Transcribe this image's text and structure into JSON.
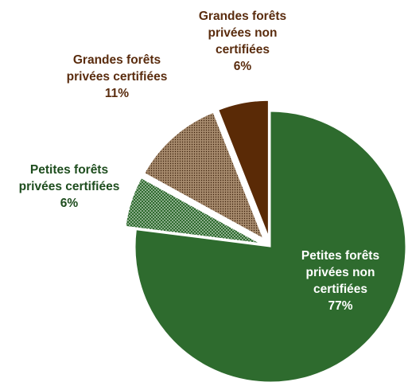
{
  "chart_data": {
    "type": "pie",
    "title": "",
    "legend": "none",
    "slices": [
      {
        "lines": [
          "Petites forêts",
          "privées non",
          "certifiées"
        ],
        "pct": "77%",
        "value": 77,
        "color": "#2e6b2e",
        "text_color": "#ffffff",
        "exploded": false,
        "texture": "none"
      },
      {
        "lines": [
          "Petites forêts",
          "privées certifiées"
        ],
        "pct": "6%",
        "value": 6,
        "color": "#2e6b2e",
        "text_color": "#1e4d1e",
        "exploded": true,
        "texture": "dots-light"
      },
      {
        "lines": [
          "Grandes forêts",
          "privées certifiées"
        ],
        "pct": "11%",
        "value": 11,
        "color": "#a68a6d",
        "text_color": "#5a2c0e",
        "exploded": true,
        "texture": "dots-dark"
      },
      {
        "lines": [
          "Grandes forêts",
          "privées non",
          "certifiées"
        ],
        "pct": "6%",
        "value": 6,
        "color": "#5a2a06",
        "text_color": "#5a2c0e",
        "exploded": true,
        "texture": "none"
      }
    ]
  }
}
